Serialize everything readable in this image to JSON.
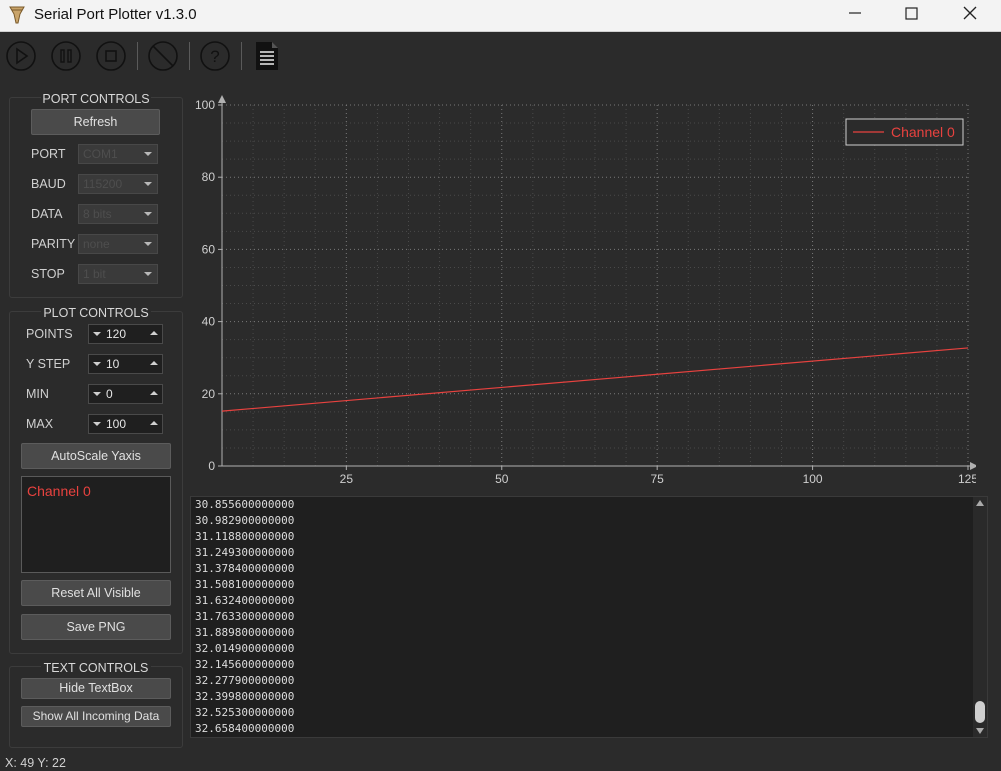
{
  "window": {
    "title": "Serial Port Plotter v1.3.0"
  },
  "toolbar": {
    "buttons": [
      "play-icon",
      "pause-icon",
      "stop-icon",
      "clear-icon",
      "help-icon",
      "document-icon"
    ]
  },
  "port_controls": {
    "title": "PORT CONTROLS",
    "refresh_label": "Refresh",
    "fields": [
      {
        "label": "PORT",
        "value": "COM1"
      },
      {
        "label": "BAUD",
        "value": "115200"
      },
      {
        "label": "DATA",
        "value": "8 bits"
      },
      {
        "label": "PARITY",
        "value": "none"
      },
      {
        "label": "STOP",
        "value": "1 bit"
      }
    ]
  },
  "plot_controls": {
    "title": "PLOT CONTROLS",
    "fields": [
      {
        "label": "POINTS",
        "value": "120"
      },
      {
        "label": "Y STEP",
        "value": "10"
      },
      {
        "label": "MIN",
        "value": "0"
      },
      {
        "label": "MAX",
        "value": "100"
      }
    ],
    "autoscale_label": "AutoScale Yaxis",
    "channels": [
      "Channel 0"
    ],
    "reset_label": "Reset All Visible",
    "save_label": "Save PNG"
  },
  "text_controls": {
    "title": "TEXT CONTROLS",
    "hide_label": "Hide TextBox",
    "show_label": "Show All Incoming Data"
  },
  "text_lines": [
    "30.855600000000",
    "30.982900000000",
    "31.118800000000",
    "31.249300000000",
    "31.378400000000",
    "31.508100000000",
    "31.632400000000",
    "31.763300000000",
    "31.889800000000",
    "32.014900000000",
    "32.145600000000",
    "32.277900000000",
    "32.399800000000",
    "32.525300000000",
    "32.658400000000"
  ],
  "status": {
    "text": "X: 49 Y: 22"
  },
  "colors": {
    "series": "#e8423f",
    "background": "#2b2b2b"
  },
  "chart_data": {
    "type": "line",
    "xlim": [
      5,
      125
    ],
    "ylim": [
      0,
      100
    ],
    "xticks": [
      25,
      50,
      75,
      100,
      125
    ],
    "yticks": [
      0,
      20,
      40,
      60,
      80,
      100
    ],
    "grid": true,
    "legend": "top-right",
    "series": [
      {
        "name": "Channel 0",
        "x": [
          5,
          125
        ],
        "y": [
          15.2,
          32.7
        ]
      }
    ]
  }
}
